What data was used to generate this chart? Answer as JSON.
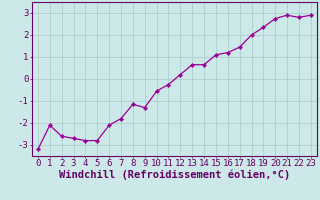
{
  "x": [
    0,
    1,
    2,
    3,
    4,
    5,
    6,
    7,
    8,
    9,
    10,
    11,
    12,
    13,
    14,
    15,
    16,
    17,
    18,
    19,
    20,
    21,
    22,
    23
  ],
  "y": [
    -3.2,
    -2.1,
    -2.6,
    -2.7,
    -2.8,
    -2.8,
    -2.1,
    -1.8,
    -1.15,
    -1.3,
    -0.55,
    -0.25,
    0.2,
    0.65,
    0.65,
    1.1,
    1.2,
    1.45,
    2.0,
    2.35,
    2.75,
    2.9,
    2.8,
    2.9
  ],
  "line_color": "#990099",
  "marker": "D",
  "marker_size": 2.2,
  "linewidth": 0.9,
  "xlabel": "Windchill (Refroidissement éolien,°C)",
  "xlim": [
    -0.5,
    23.5
  ],
  "ylim": [
    -3.5,
    3.5
  ],
  "yticks": [
    -3,
    -2,
    -1,
    0,
    1,
    2,
    3
  ],
  "xticks": [
    0,
    1,
    2,
    3,
    4,
    5,
    6,
    7,
    8,
    9,
    10,
    11,
    12,
    13,
    14,
    15,
    16,
    17,
    18,
    19,
    20,
    21,
    22,
    23
  ],
  "bg_color": "#cce8e8",
  "grid_color": "#aacccc",
  "line_border_color": "#660066",
  "tick_color": "#660066",
  "xlabel_fontsize": 7.5,
  "tick_fontsize": 6.5
}
